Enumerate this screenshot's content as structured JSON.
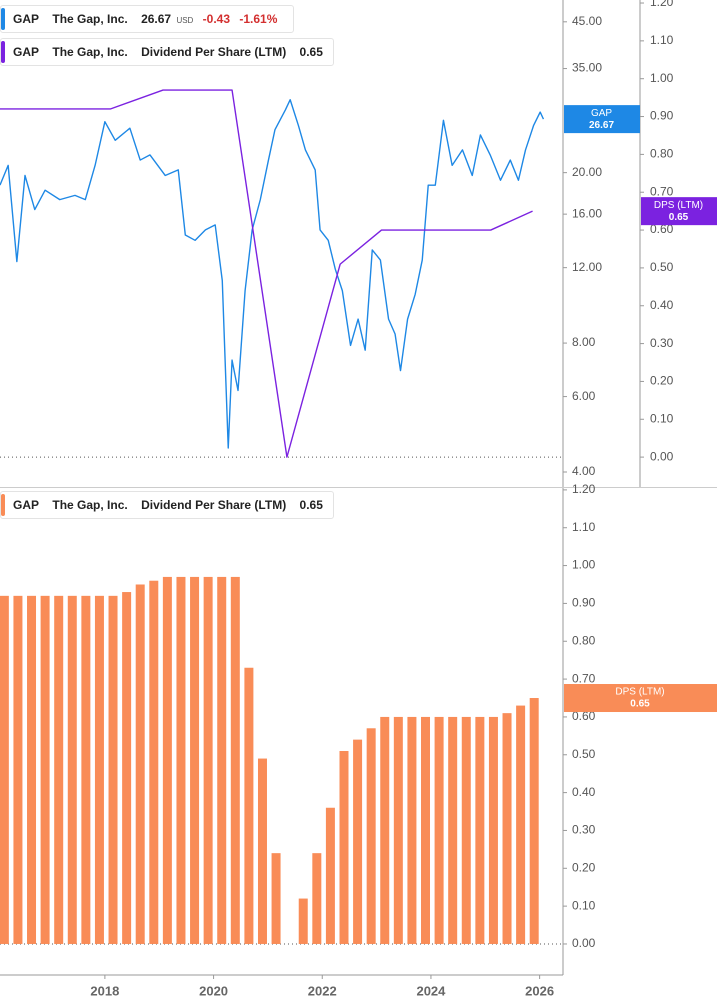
{
  "chart_data": [
    {
      "type": "line",
      "yscale": "log",
      "legend": [
        {
          "ticker": "GAP",
          "company": "The Gap, Inc.",
          "price": "26.67",
          "currency": "USD",
          "change": "-0.43",
          "change_pct": "-1.61%"
        },
        {
          "ticker": "GAP",
          "company": "The Gap, Inc.",
          "metric": "Dividend Per Share (LTM)",
          "value": "0.65"
        }
      ],
      "xlim": [
        2016.07,
        2026.43
      ],
      "ylim": [
        3.69,
        50.6
      ],
      "yticks": [
        {
          "value": 4,
          "label": "4.00"
        },
        {
          "value": 6,
          "label": "6.00"
        },
        {
          "value": 8,
          "label": "8.00"
        },
        {
          "value": 12,
          "label": "12.00"
        },
        {
          "value": 16,
          "label": "16.00"
        },
        {
          "value": 20,
          "label": "20.00"
        },
        {
          "value": 35,
          "label": "35.00"
        },
        {
          "value": 45,
          "label": "45.00"
        }
      ],
      "y2lim": [
        -0.079,
        1.208
      ],
      "y2ticks": [
        {
          "value": 0,
          "label": "0.00"
        },
        {
          "value": 0.1,
          "label": "0.10"
        },
        {
          "value": 0.2,
          "label": "0.20"
        },
        {
          "value": 0.3,
          "label": "0.30"
        },
        {
          "value": 0.4,
          "label": "0.40"
        },
        {
          "value": 0.5,
          "label": "0.50"
        },
        {
          "value": 0.6,
          "label": "0.60"
        },
        {
          "value": 0.7,
          "label": "0.70"
        },
        {
          "value": 0.8,
          "label": "0.80"
        },
        {
          "value": 0.9,
          "label": "0.90"
        },
        {
          "value": 1.0,
          "label": "1.00"
        },
        {
          "value": 1.1,
          "label": "1.10"
        },
        {
          "value": 1.2,
          "label": "1.20"
        }
      ],
      "series": [
        {
          "name": "GAP",
          "color": "#1e88e5",
          "x": [
            2016.07,
            2016.22,
            2016.38,
            2016.53,
            2016.71,
            2016.9,
            2017.17,
            2017.45,
            2017.64,
            2017.82,
            2018.0,
            2018.19,
            2018.46,
            2018.65,
            2018.83,
            2019.11,
            2019.35,
            2019.48,
            2019.66,
            2019.85,
            2020.03,
            2020.16,
            2020.27,
            2020.34,
            2020.45,
            2020.58,
            2020.71,
            2020.86,
            2021.01,
            2021.13,
            2021.32,
            2021.41,
            2021.56,
            2021.69,
            2021.87,
            2021.96,
            2022.11,
            2022.24,
            2022.37,
            2022.52,
            2022.66,
            2022.79,
            2022.92,
            2023.07,
            2023.22,
            2023.34,
            2023.44,
            2023.57,
            2023.71,
            2023.84,
            2023.95,
            2024.08,
            2024.23,
            2024.39,
            2024.58,
            2024.76,
            2024.91,
            2025.09,
            2025.28,
            2025.46,
            2025.61,
            2025.74,
            2025.89,
            2026.01,
            2026.07
          ],
          "values": [
            18.7,
            20.8,
            12.4,
            19.7,
            16.4,
            18.2,
            17.3,
            17.7,
            17.3,
            20.8,
            26.3,
            23.8,
            25.4,
            21.4,
            22.0,
            19.7,
            20.3,
            14.3,
            13.9,
            14.7,
            15.1,
            11.2,
            4.55,
            7.3,
            6.2,
            10.6,
            14.7,
            17.3,
            21.4,
            25.2,
            28.0,
            29.6,
            25.8,
            22.6,
            20.3,
            14.7,
            13.9,
            11.9,
            10.6,
            7.9,
            9.1,
            7.7,
            13.2,
            12.5,
            9.1,
            8.4,
            6.9,
            9.1,
            10.4,
            12.5,
            18.7,
            18.7,
            26.5,
            20.8,
            22.6,
            19.7,
            24.5,
            22.0,
            19.2,
            21.4,
            19.2,
            22.6,
            25.8,
            27.7,
            26.67
          ]
        },
        {
          "name": "DPS (LTM)",
          "color": "#7b22e0",
          "axis": "y2",
          "x": [
            2016.07,
            2018.1,
            2019.07,
            2020.34,
            2021.35,
            2022.33,
            2023.09,
            2025.1,
            2025.87
          ],
          "values": [
            0.92,
            0.92,
            0.97,
            0.97,
            0,
            0.51,
            0.6,
            0.6,
            0.65
          ]
        }
      ]
    },
    {
      "type": "bar",
      "legend": [
        {
          "ticker": "GAP",
          "company": "The Gap, Inc.",
          "metric": "Dividend Per Share (LTM)",
          "value": "0.65"
        }
      ],
      "xlim": [
        2016.07,
        2026.43
      ],
      "xticks": [
        2018,
        2020,
        2022,
        2024,
        2026
      ],
      "ylim": [
        -0.082,
        1.205
      ],
      "yticks": [
        {
          "value": 0,
          "label": "0.00"
        },
        {
          "value": 0.1,
          "label": "0.10"
        },
        {
          "value": 0.2,
          "label": "0.20"
        },
        {
          "value": 0.3,
          "label": "0.30"
        },
        {
          "value": 0.4,
          "label": "0.40"
        },
        {
          "value": 0.5,
          "label": "0.50"
        },
        {
          "value": 0.6,
          "label": "0.60"
        },
        {
          "value": 0.7,
          "label": "0.70"
        },
        {
          "value": 0.8,
          "label": "0.80"
        },
        {
          "value": 0.9,
          "label": "0.90"
        },
        {
          "value": 1.0,
          "label": "1.00"
        },
        {
          "value": 1.1,
          "label": "1.10"
        },
        {
          "value": 1.2,
          "label": "1.20"
        }
      ],
      "series": [
        {
          "name": "DPS (LTM)",
          "color": "#f98c57",
          "x": [
            2016.15,
            2016.4,
            2016.65,
            2016.9,
            2017.15,
            2017.4,
            2017.65,
            2017.9,
            2018.15,
            2018.4,
            2018.65,
            2018.9,
            2019.15,
            2019.4,
            2019.65,
            2019.9,
            2020.15,
            2020.4,
            2020.65,
            2020.9,
            2021.15,
            2021.4,
            2021.65,
            2021.9,
            2022.15,
            2022.4,
            2022.65,
            2022.9,
            2023.15,
            2023.4,
            2023.65,
            2023.9,
            2024.15,
            2024.4,
            2024.65,
            2024.9,
            2025.15,
            2025.4,
            2025.65,
            2025.9
          ],
          "values": [
            0.92,
            0.92,
            0.92,
            0.92,
            0.92,
            0.92,
            0.92,
            0.92,
            0.92,
            0.93,
            0.95,
            0.96,
            0.97,
            0.97,
            0.97,
            0.97,
            0.97,
            0.97,
            0.73,
            0.49,
            0.24,
            0,
            0.12,
            0.24,
            0.36,
            0.51,
            0.54,
            0.57,
            0.6,
            0.6,
            0.6,
            0.6,
            0.6,
            0.6,
            0.6,
            0.6,
            0.6,
            0.61,
            0.63,
            0.65
          ]
        }
      ]
    }
  ]
}
